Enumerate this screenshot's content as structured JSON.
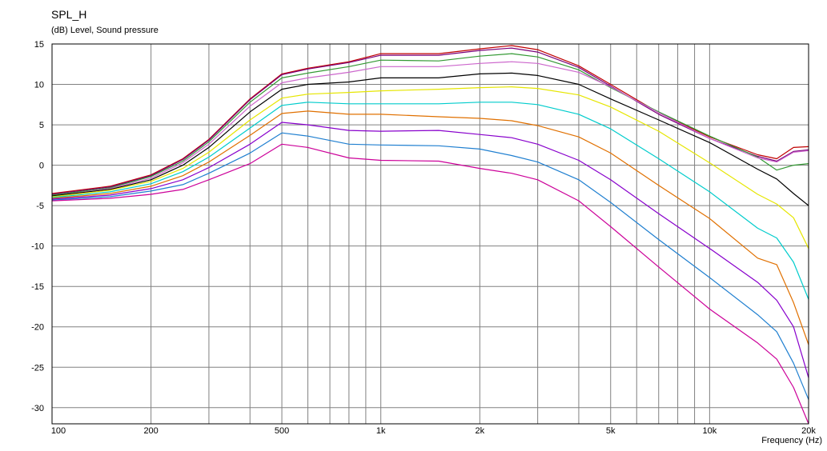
{
  "chart_data": {
    "type": "line",
    "title": "SPL_H",
    "ylabel": "(dB)  Level, Sound pressure",
    "xlabel": "Frequency  (Hz)",
    "x_scale": "log",
    "xlim": [
      100,
      20000
    ],
    "ylim": [
      -32,
      15
    ],
    "x_ticks": [
      {
        "value": 100,
        "label": "100"
      },
      {
        "value": 200,
        "label": "200"
      },
      {
        "value": 500,
        "label": "500"
      },
      {
        "value": 1000,
        "label": "1k"
      },
      {
        "value": 2000,
        "label": "2k"
      },
      {
        "value": 5000,
        "label": "5k"
      },
      {
        "value": 10000,
        "label": "10k"
      },
      {
        "value": 20000,
        "label": "20k"
      }
    ],
    "y_ticks": [
      15,
      10,
      5,
      0,
      -5,
      -10,
      -15,
      -20,
      -25,
      -30
    ],
    "grid": true,
    "x": [
      100,
      150,
      200,
      250,
      300,
      400,
      500,
      600,
      800,
      1000,
      1500,
      2000,
      2500,
      3000,
      4000,
      5000,
      7000,
      10000,
      14000,
      16000,
      18000,
      20000
    ],
    "series": [
      {
        "color": "#c00000",
        "values": [
          -3.5,
          -2.6,
          -1.2,
          0.8,
          3.2,
          8.2,
          11.3,
          12.0,
          12.8,
          13.8,
          13.8,
          14.4,
          14.8,
          14.3,
          12.3,
          10.0,
          6.5,
          3.5,
          1.3,
          0.8,
          2.2,
          2.3
        ]
      },
      {
        "color": "#7a007a",
        "values": [
          -3.6,
          -2.7,
          -1.3,
          0.7,
          3.1,
          8.1,
          11.2,
          11.9,
          12.7,
          13.6,
          13.6,
          14.2,
          14.5,
          14.0,
          12.1,
          9.8,
          6.3,
          3.3,
          1.1,
          0.5,
          1.7,
          1.9
        ]
      },
      {
        "color": "#339933",
        "values": [
          -3.7,
          -2.8,
          -1.4,
          0.5,
          2.9,
          7.8,
          10.8,
          11.4,
          12.2,
          13.0,
          12.9,
          13.5,
          13.8,
          13.4,
          11.8,
          9.6,
          6.6,
          3.6,
          1.0,
          -0.6,
          0.0,
          0.2
        ]
      },
      {
        "color": "#cc66cc",
        "values": [
          -3.8,
          -2.9,
          -1.6,
          0.3,
          2.6,
          7.3,
          10.2,
          10.8,
          11.5,
          12.2,
          12.2,
          12.6,
          12.8,
          12.6,
          11.5,
          9.7,
          6.5,
          3.3,
          0.9,
          0.4,
          1.6,
          1.8
        ]
      },
      {
        "color": "#000000",
        "values": [
          -3.8,
          -3.0,
          -1.8,
          0.0,
          2.2,
          6.6,
          9.4,
          10.0,
          10.3,
          10.8,
          10.8,
          11.3,
          11.4,
          11.1,
          10.0,
          8.2,
          5.6,
          2.8,
          -0.5,
          -1.7,
          -3.5,
          -5.0
        ]
      },
      {
        "color": "#e6e600",
        "values": [
          -3.9,
          -3.1,
          -2.0,
          -0.4,
          1.6,
          5.6,
          8.3,
          8.8,
          9.0,
          9.2,
          9.4,
          9.6,
          9.7,
          9.5,
          8.7,
          7.2,
          4.2,
          0.3,
          -3.6,
          -4.8,
          -6.5,
          -10.3
        ]
      },
      {
        "color": "#00cccc",
        "values": [
          -4.0,
          -3.3,
          -2.3,
          -0.8,
          1.0,
          4.6,
          7.4,
          7.8,
          7.6,
          7.6,
          7.6,
          7.8,
          7.8,
          7.5,
          6.3,
          4.5,
          0.8,
          -3.3,
          -7.8,
          -9.0,
          -12.0,
          -16.6
        ]
      },
      {
        "color": "#e07000",
        "values": [
          -4.1,
          -3.5,
          -2.6,
          -1.3,
          0.4,
          3.7,
          6.4,
          6.7,
          6.3,
          6.3,
          6.0,
          5.8,
          5.5,
          4.9,
          3.5,
          1.5,
          -2.5,
          -6.6,
          -11.5,
          -12.3,
          -17.0,
          -22.2
        ]
      },
      {
        "color": "#8800cc",
        "values": [
          -4.2,
          -3.7,
          -2.9,
          -1.8,
          -0.3,
          2.6,
          5.3,
          5.0,
          4.3,
          4.2,
          4.3,
          3.8,
          3.4,
          2.6,
          0.6,
          -1.8,
          -6.0,
          -10.3,
          -14.5,
          -16.7,
          -20.0,
          -26.3
        ]
      },
      {
        "color": "#1f7fd0",
        "values": [
          -4.3,
          -3.9,
          -3.2,
          -2.4,
          -1.0,
          1.5,
          4.0,
          3.6,
          2.6,
          2.5,
          2.4,
          2.0,
          1.2,
          0.4,
          -1.8,
          -4.6,
          -9.2,
          -13.9,
          -18.5,
          -20.6,
          -24.5,
          -29.0
        ]
      },
      {
        "color": "#cc0099",
        "values": [
          -4.4,
          -4.1,
          -3.6,
          -3.0,
          -1.8,
          0.2,
          2.6,
          2.2,
          0.9,
          0.6,
          0.5,
          -0.4,
          -1.0,
          -1.8,
          -4.4,
          -7.6,
          -12.6,
          -17.8,
          -22.0,
          -24.0,
          -27.5,
          -32.0
        ]
      }
    ]
  }
}
